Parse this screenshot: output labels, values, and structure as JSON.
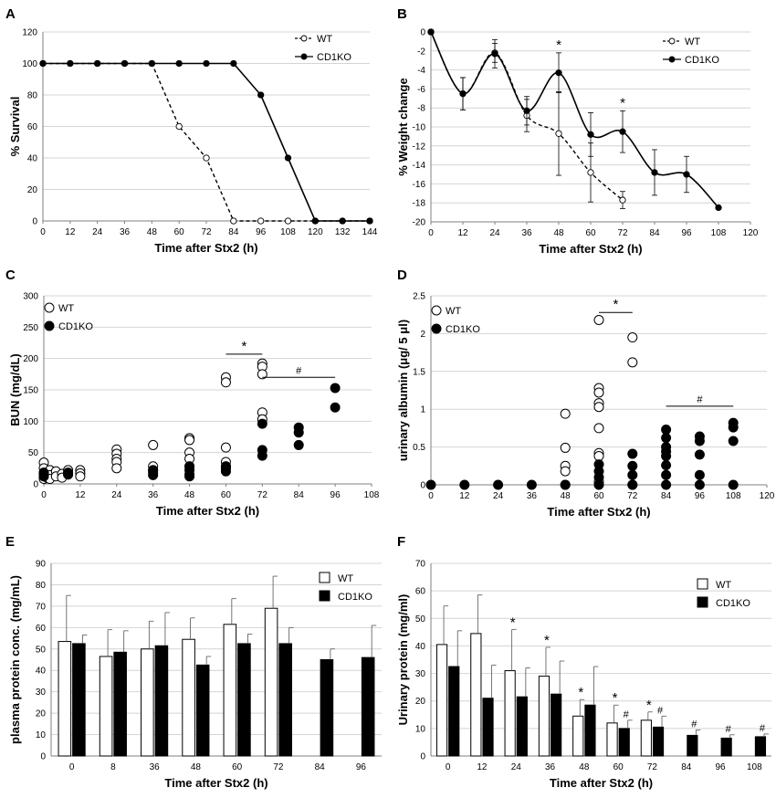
{
  "chart_data": [
    {
      "panel": "A",
      "type": "line",
      "xlabel": "Time after Stx2 (h)",
      "ylabel": "% Survival",
      "xticks": [
        "0",
        "12",
        "24",
        "36",
        "48",
        "60",
        "72",
        "84",
        "96",
        "108",
        "120",
        "132",
        "144"
      ],
      "yticks": [
        "0",
        "20",
        "40",
        "60",
        "80",
        "100",
        "120"
      ],
      "xlim": [
        0,
        144
      ],
      "ylim": [
        0,
        120
      ],
      "legend": [
        "WT",
        "CD1KO"
      ],
      "series": [
        {
          "name": "WT",
          "x": [
            0,
            12,
            24,
            36,
            48,
            60,
            72,
            84,
            96,
            108,
            120,
            132,
            144
          ],
          "values": [
            100,
            100,
            100,
            100,
            100,
            60,
            40,
            0,
            0,
            0,
            0,
            0,
            0
          ],
          "style": "dashed-open"
        },
        {
          "name": "CD1KO",
          "x": [
            0,
            12,
            24,
            36,
            48,
            60,
            72,
            84,
            96,
            108,
            120,
            132,
            144
          ],
          "values": [
            100,
            100,
            100,
            100,
            100,
            100,
            100,
            100,
            80,
            40,
            0,
            0,
            0
          ],
          "style": "solid-filled"
        }
      ]
    },
    {
      "panel": "B",
      "type": "line",
      "xlabel": "Time after Stx2 (h)",
      "ylabel": "% Weight change",
      "xticks": [
        "0",
        "12",
        "24",
        "36",
        "48",
        "60",
        "72",
        "84",
        "96",
        "108",
        "120"
      ],
      "yticks": [
        "0",
        "-2",
        "-4",
        "-6",
        "-8",
        "-10",
        "-12",
        "-14",
        "-16",
        "-18",
        "-20"
      ],
      "xlim": [
        0,
        120
      ],
      "ylim": [
        -20,
        0
      ],
      "legend": [
        "WT",
        "CD1KO"
      ],
      "series": [
        {
          "name": "WT",
          "x": [
            0,
            12,
            24,
            36,
            48,
            60,
            72
          ],
          "values": [
            0,
            -6.5,
            -2.2,
            -8.8,
            -10.7,
            -14.8,
            -17.7
          ],
          "errors": [
            0,
            1.7,
            1.0,
            1.7,
            4.4,
            3.1,
            0.9
          ],
          "style": "dashed-open"
        },
        {
          "name": "CD1KO",
          "x": [
            0,
            12,
            24,
            36,
            48,
            60,
            72,
            84,
            96,
            108
          ],
          "values": [
            0,
            -6.5,
            -2.3,
            -8.3,
            -4.3,
            -10.8,
            -10.5,
            -14.8,
            -15.0,
            -18.5
          ],
          "errors": [
            0,
            1.7,
            1.5,
            1.5,
            2.1,
            2.3,
            2.2,
            2.4,
            1.9,
            0
          ],
          "style": "solid-filled"
        }
      ],
      "annotations": [
        {
          "label": "*",
          "x": 48
        },
        {
          "label": "*",
          "x": 72
        }
      ]
    },
    {
      "panel": "C",
      "type": "scatter",
      "xlabel": "Time after Stx2 (h)",
      "ylabel": "BUN (mg/dL)",
      "xticks": [
        "0",
        "12",
        "24",
        "36",
        "48",
        "60",
        "72",
        "84",
        "96",
        "108"
      ],
      "yticks": [
        "0",
        "50",
        "100",
        "150",
        "200",
        "250",
        "300"
      ],
      "xlim": [
        0,
        108
      ],
      "ylim": [
        0,
        300
      ],
      "legend": [
        "WT",
        "CD1KO"
      ],
      "series": [
        {
          "name": "WT",
          "style": "open",
          "points": [
            [
              0,
              34
            ],
            [
              0,
              25
            ],
            [
              0,
              18
            ],
            [
              0,
              12
            ],
            [
              0,
              8
            ],
            [
              1,
              16
            ],
            [
              1,
              10
            ],
            [
              2,
              22
            ],
            [
              2,
              14
            ],
            [
              2,
              8
            ],
            [
              4,
              20
            ],
            [
              4,
              12
            ],
            [
              6,
              16
            ],
            [
              6,
              10
            ],
            [
              8,
              22
            ],
            [
              8,
              15
            ],
            [
              12,
              22
            ],
            [
              12,
              17
            ],
            [
              12,
              12
            ],
            [
              24,
              55
            ],
            [
              24,
              48
            ],
            [
              24,
              40
            ],
            [
              24,
              35
            ],
            [
              24,
              25
            ],
            [
              36,
              62
            ],
            [
              36,
              28
            ],
            [
              36,
              22
            ],
            [
              48,
              73
            ],
            [
              48,
              70
            ],
            [
              48,
              50
            ],
            [
              48,
              40
            ],
            [
              48,
              28
            ],
            [
              60,
              170
            ],
            [
              60,
              162
            ],
            [
              60,
              58
            ],
            [
              60,
              35
            ],
            [
              60,
              28
            ],
            [
              72,
              192
            ],
            [
              72,
              187
            ],
            [
              72,
              175
            ],
            [
              72,
              114
            ],
            [
              72,
              103
            ]
          ]
        },
        {
          "name": "CD1KO",
          "style": "filled",
          "points": [
            [
              0,
              18
            ],
            [
              0,
              15
            ],
            [
              0,
              12
            ],
            [
              8,
              18
            ],
            [
              8,
              16
            ],
            [
              36,
              22
            ],
            [
              36,
              18
            ],
            [
              36,
              14
            ],
            [
              48,
              28
            ],
            [
              48,
              22
            ],
            [
              48,
              15
            ],
            [
              48,
              12
            ],
            [
              60,
              28
            ],
            [
              60,
              24
            ],
            [
              60,
              20
            ],
            [
              72,
              96
            ],
            [
              72,
              54
            ],
            [
              72,
              45
            ],
            [
              84,
              90
            ],
            [
              84,
              82
            ],
            [
              84,
              62
            ],
            [
              96,
              153
            ],
            [
              96,
              122
            ]
          ]
        }
      ],
      "annotations": [
        {
          "label": "*",
          "x_from": 60,
          "x_to": 72,
          "y": 207
        },
        {
          "label": "#",
          "x_from": 72,
          "x_to": 96,
          "y": 170
        }
      ]
    },
    {
      "panel": "D",
      "type": "scatter",
      "xlabel": "Time after Stx2 (h)",
      "ylabel": "urinary albumin (μg/ 5 μl)",
      "xticks": [
        "0",
        "12",
        "24",
        "36",
        "48",
        "60",
        "72",
        "84",
        "96",
        "108",
        "120"
      ],
      "yticks": [
        "0",
        "0.5",
        "1",
        "1.5",
        "2",
        "2.5"
      ],
      "xlim": [
        0,
        120
      ],
      "ylim": [
        0,
        2.5
      ],
      "legend": [
        "WT",
        "CD1KO"
      ],
      "series": [
        {
          "name": "WT",
          "style": "open",
          "points": [
            [
              48,
              0.94
            ],
            [
              48,
              0.49
            ],
            [
              48,
              0.25
            ],
            [
              48,
              0.18
            ],
            [
              48,
              0
            ],
            [
              60,
              2.18
            ],
            [
              60,
              1.28
            ],
            [
              60,
              1.22
            ],
            [
              60,
              1.08
            ],
            [
              60,
              1.03
            ],
            [
              60,
              0.75
            ],
            [
              60,
              0.42
            ],
            [
              60,
              0.38
            ],
            [
              60,
              0.04
            ],
            [
              72,
              1.95
            ],
            [
              72,
              1.62
            ],
            [
              72,
              0
            ]
          ]
        },
        {
          "name": "CD1KO",
          "style": "filled",
          "points": [
            [
              0,
              0
            ],
            [
              12,
              0
            ],
            [
              24,
              0
            ],
            [
              36,
              0
            ],
            [
              48,
              0
            ],
            [
              60,
              0.27
            ],
            [
              60,
              0.18
            ],
            [
              60,
              0.1
            ],
            [
              60,
              0
            ],
            [
              72,
              0.41
            ],
            [
              72,
              0.25
            ],
            [
              72,
              0.13
            ],
            [
              72,
              0
            ],
            [
              84,
              0.73
            ],
            [
              84,
              0.62
            ],
            [
              84,
              0.5
            ],
            [
              84,
              0.44
            ],
            [
              84,
              0.38
            ],
            [
              84,
              0.26
            ],
            [
              84,
              0.13
            ],
            [
              84,
              0
            ],
            [
              96,
              0.64
            ],
            [
              96,
              0.58
            ],
            [
              96,
              0.4
            ],
            [
              96,
              0.13
            ],
            [
              96,
              0
            ],
            [
              108,
              0.82
            ],
            [
              108,
              0.76
            ],
            [
              108,
              0.58
            ],
            [
              108,
              0
            ]
          ]
        }
      ],
      "annotations": [
        {
          "label": "*",
          "x_from": 60,
          "x_to": 72,
          "y": 2.28
        },
        {
          "label": "#",
          "x_from": 84,
          "x_to": 108,
          "y": 1.04
        }
      ]
    },
    {
      "panel": "E",
      "type": "bar",
      "xlabel": "Time after Stx2 (h)",
      "ylabel": "plasma protein conc. (mg/mL)",
      "categories": [
        "0",
        "8",
        "36",
        "48",
        "60",
        "72",
        "84",
        "96"
      ],
      "yticks": [
        "0",
        "10",
        "20",
        "30",
        "40",
        "50",
        "60",
        "70",
        "80",
        "90"
      ],
      "ylim": [
        0,
        90
      ],
      "legend": [
        "WT",
        "CD1KO"
      ],
      "series": [
        {
          "name": "WT",
          "style": "open",
          "values": [
            53.5,
            46.5,
            50,
            54.5,
            61.5,
            69,
            null,
            null
          ],
          "errors": [
            21.5,
            12.5,
            13,
            10,
            12,
            15,
            null,
            null
          ]
        },
        {
          "name": "CD1KO",
          "style": "filled",
          "values": [
            52.5,
            48.5,
            51.5,
            42.5,
            52.5,
            52.5,
            45,
            46
          ],
          "errors": [
            4,
            10,
            15.5,
            4,
            4.5,
            7.5,
            5,
            15
          ]
        }
      ]
    },
    {
      "panel": "F",
      "type": "bar",
      "xlabel": "Time after Stx2 (h)",
      "ylabel": "Urinary protein (mg/ml)",
      "categories": [
        "0",
        "12",
        "24",
        "36",
        "48",
        "60",
        "72",
        "84",
        "96",
        "108"
      ],
      "yticks": [
        "0",
        "10",
        "20",
        "30",
        "40",
        "50",
        "60",
        "70"
      ],
      "ylim": [
        0,
        70
      ],
      "legend": [
        "WT",
        "CD1KO"
      ],
      "series": [
        {
          "name": "WT",
          "style": "open",
          "values": [
            40.5,
            44.5,
            31,
            29,
            14.5,
            12,
            13,
            null,
            null,
            null
          ],
          "errors": [
            14,
            14,
            15,
            10.5,
            6,
            6.5,
            3,
            null,
            null,
            null
          ]
        },
        {
          "name": "CD1KO",
          "style": "filled",
          "values": [
            32.5,
            21,
            21.5,
            22.5,
            18.5,
            10,
            10.5,
            7.5,
            6.5,
            7
          ],
          "errors": [
            13,
            12,
            10.5,
            12,
            14,
            3,
            4,
            2,
            1.2,
            1
          ]
        }
      ],
      "annotations": {
        "WT": [
          "",
          "",
          "*",
          "*",
          "*",
          "*",
          "*",
          "",
          "",
          ""
        ],
        "CD1KO": [
          "",
          "",
          "",
          "",
          "",
          "#",
          "#",
          "#",
          "#",
          "#"
        ]
      }
    }
  ]
}
